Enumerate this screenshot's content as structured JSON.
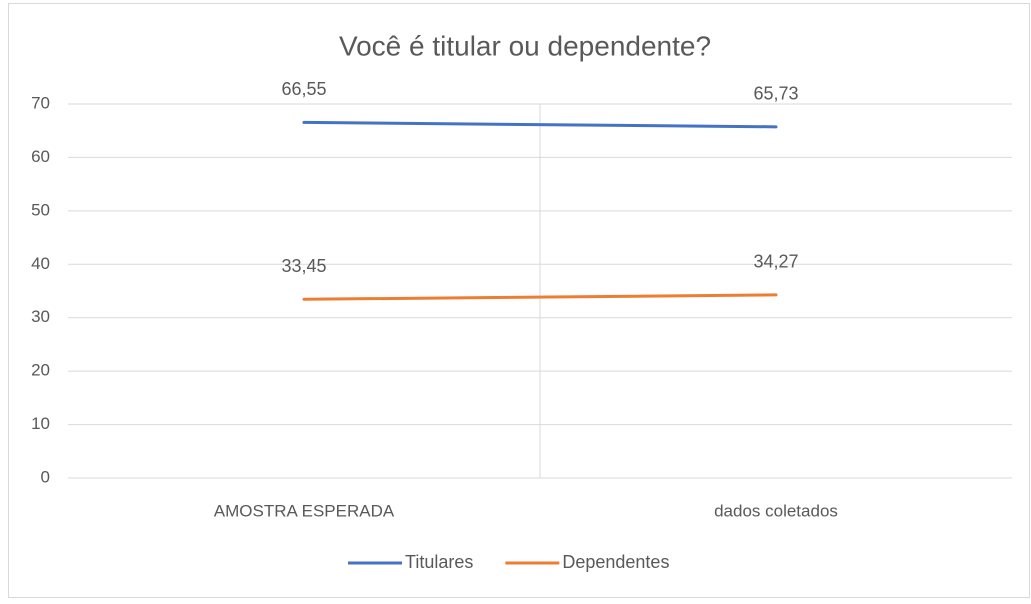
{
  "chart_data": {
    "type": "line",
    "title": "Você é titular ou dependente?",
    "categories": [
      "AMOSTRA ESPERADA",
      "dados coletados"
    ],
    "series": [
      {
        "name": "Titulares",
        "color": "#4472c4",
        "values": [
          66.55,
          65.73
        ],
        "value_labels": [
          "66,55",
          "65,73"
        ]
      },
      {
        "name": "Dependentes",
        "color": "#ed7d31",
        "values": [
          33.45,
          34.27
        ],
        "value_labels": [
          "33,45",
          "34,27"
        ]
      }
    ],
    "ylim": [
      0,
      70
    ],
    "yticks": [
      0,
      10,
      20,
      30,
      40,
      50,
      60,
      70
    ],
    "grid": true,
    "legend": "bottom"
  }
}
